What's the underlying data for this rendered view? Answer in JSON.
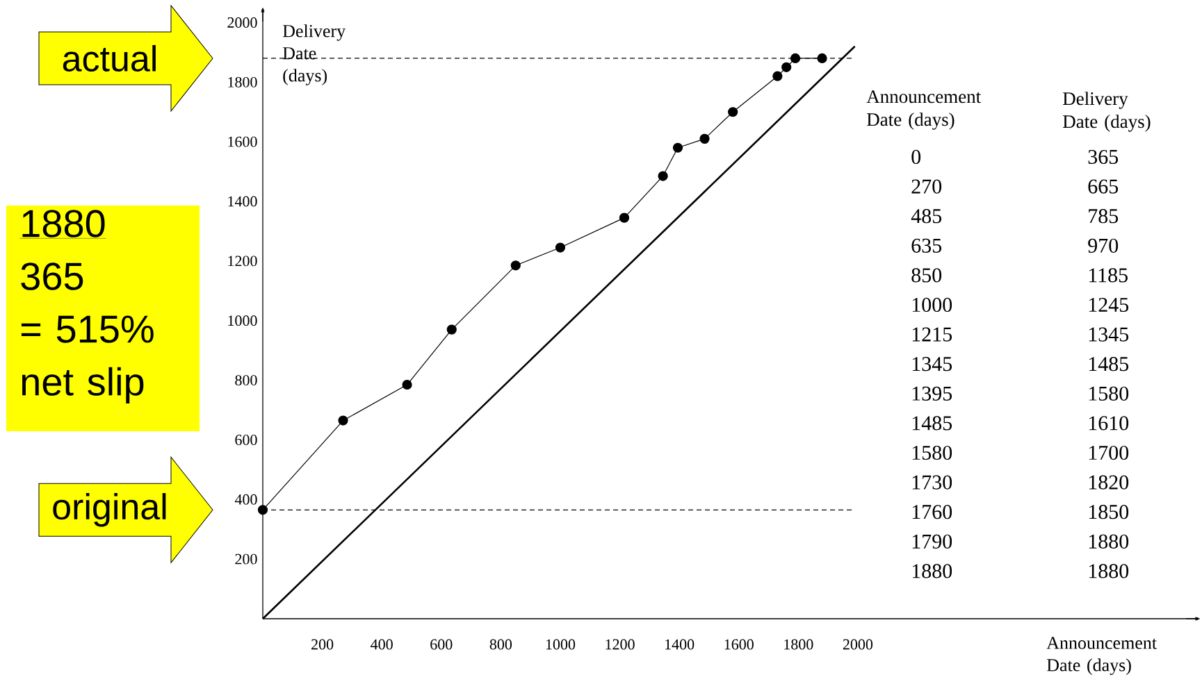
{
  "chart_data": [
    {
      "type": "line",
      "xlabel": "Announcement Date (days)",
      "ylabel": "Delivery Date (days)",
      "xlim": [
        0,
        3150
      ],
      "ylim": [
        0,
        2050
      ],
      "xticks": [
        200,
        400,
        600,
        800,
        1000,
        1200,
        1400,
        1600,
        1800,
        2000
      ],
      "yticks": [
        200,
        400,
        600,
        800,
        1000,
        1200,
        1400,
        1600,
        1800,
        2000
      ],
      "series": [
        {
          "color": "#000000",
          "marker": "circle",
          "x": [
            0,
            270,
            485,
            635,
            850,
            1000,
            1215,
            1345,
            1395,
            1485,
            1580,
            1730,
            1760,
            1790,
            1880
          ],
          "values": [
            365,
            665,
            785,
            970,
            1185,
            1245,
            1345,
            1485,
            1580,
            1610,
            1700,
            1820,
            1850,
            1880,
            1880
          ]
        },
        {
          "color": "#000000",
          "marker": "none",
          "x": [
            0,
            1990
          ],
          "values": [
            0,
            1920
          ]
        }
      ],
      "ref_lines": [
        {
          "axis": "y",
          "value": 1880,
          "label": "actual",
          "line_style": "dashed"
        },
        {
          "axis": "y",
          "value": 365,
          "label": "original",
          "line_style": "dashed"
        }
      ],
      "annotations": [
        "1880",
        "365",
        "= 515% net slip"
      ]
    },
    {
      "type": "other",
      "annotations": [
        "Announcement Date (days)",
        "Delivery Date (days)",
        "0",
        "365",
        "270",
        "665",
        "485",
        "785",
        "635",
        "970",
        "850",
        "1185",
        "1000",
        "1245",
        "1215",
        "1345",
        "1345",
        "1485",
        "1395",
        "1580",
        "1485",
        "1610",
        "1580",
        "1700",
        "1730",
        "1820",
        "1760",
        "1850",
        "1790",
        "1880",
        "1880",
        "1880"
      ]
    }
  ]
}
